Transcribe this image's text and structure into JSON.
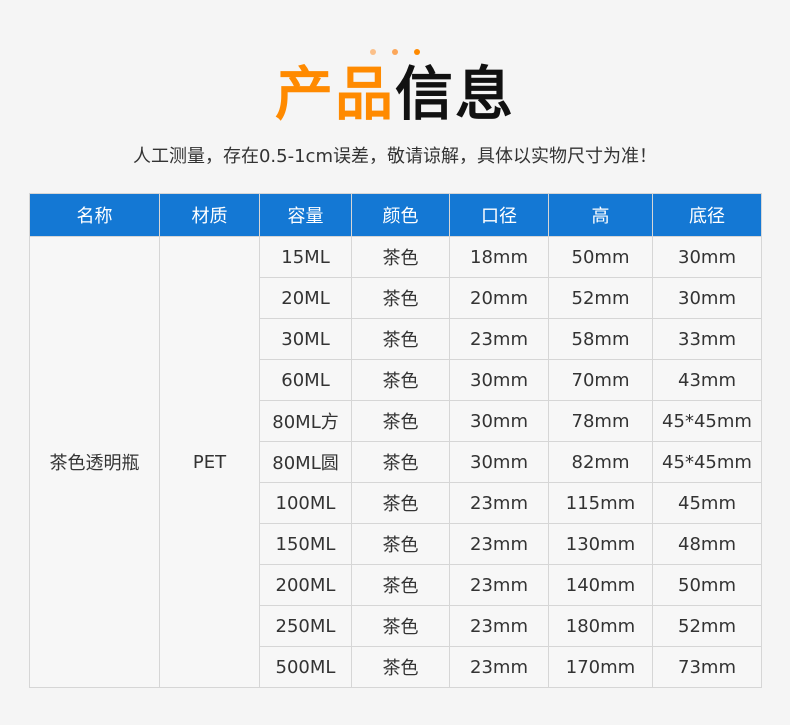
{
  "colors": {
    "accent": "#ff8a00",
    "header": "#1478d4",
    "dots": [
      "#fbc08a",
      "#fca75a",
      "#ff8a00"
    ]
  },
  "title": {
    "part1": "产品",
    "part2": "信息"
  },
  "subtitle": "人工测量，存在0.5-1cm误差，敬请谅解，具体以实物尺寸为准！",
  "table": {
    "headers": [
      "名称",
      "材质",
      "容量",
      "颜色",
      "口径",
      "高",
      "底径"
    ],
    "name": "茶色透明瓶",
    "material": "PET",
    "rows": [
      [
        "15ML",
        "茶色",
        "18mm",
        "50mm",
        "30mm"
      ],
      [
        "20ML",
        "茶色",
        "20mm",
        "52mm",
        "30mm"
      ],
      [
        "30ML",
        "茶色",
        "23mm",
        "58mm",
        "33mm"
      ],
      [
        "60ML",
        "茶色",
        "30mm",
        "70mm",
        "43mm"
      ],
      [
        "80ML方",
        "茶色",
        "30mm",
        "78mm",
        "45*45mm"
      ],
      [
        "80ML圆",
        "茶色",
        "30mm",
        "82mm",
        "45*45mm"
      ],
      [
        "100ML",
        "茶色",
        "23mm",
        "115mm",
        "45mm"
      ],
      [
        "150ML",
        "茶色",
        "23mm",
        "130mm",
        "48mm"
      ],
      [
        "200ML",
        "茶色",
        "23mm",
        "140mm",
        "50mm"
      ],
      [
        "250ML",
        "茶色",
        "23mm",
        "180mm",
        "52mm"
      ],
      [
        "500ML",
        "茶色",
        "23mm",
        "170mm",
        "73mm"
      ]
    ]
  }
}
